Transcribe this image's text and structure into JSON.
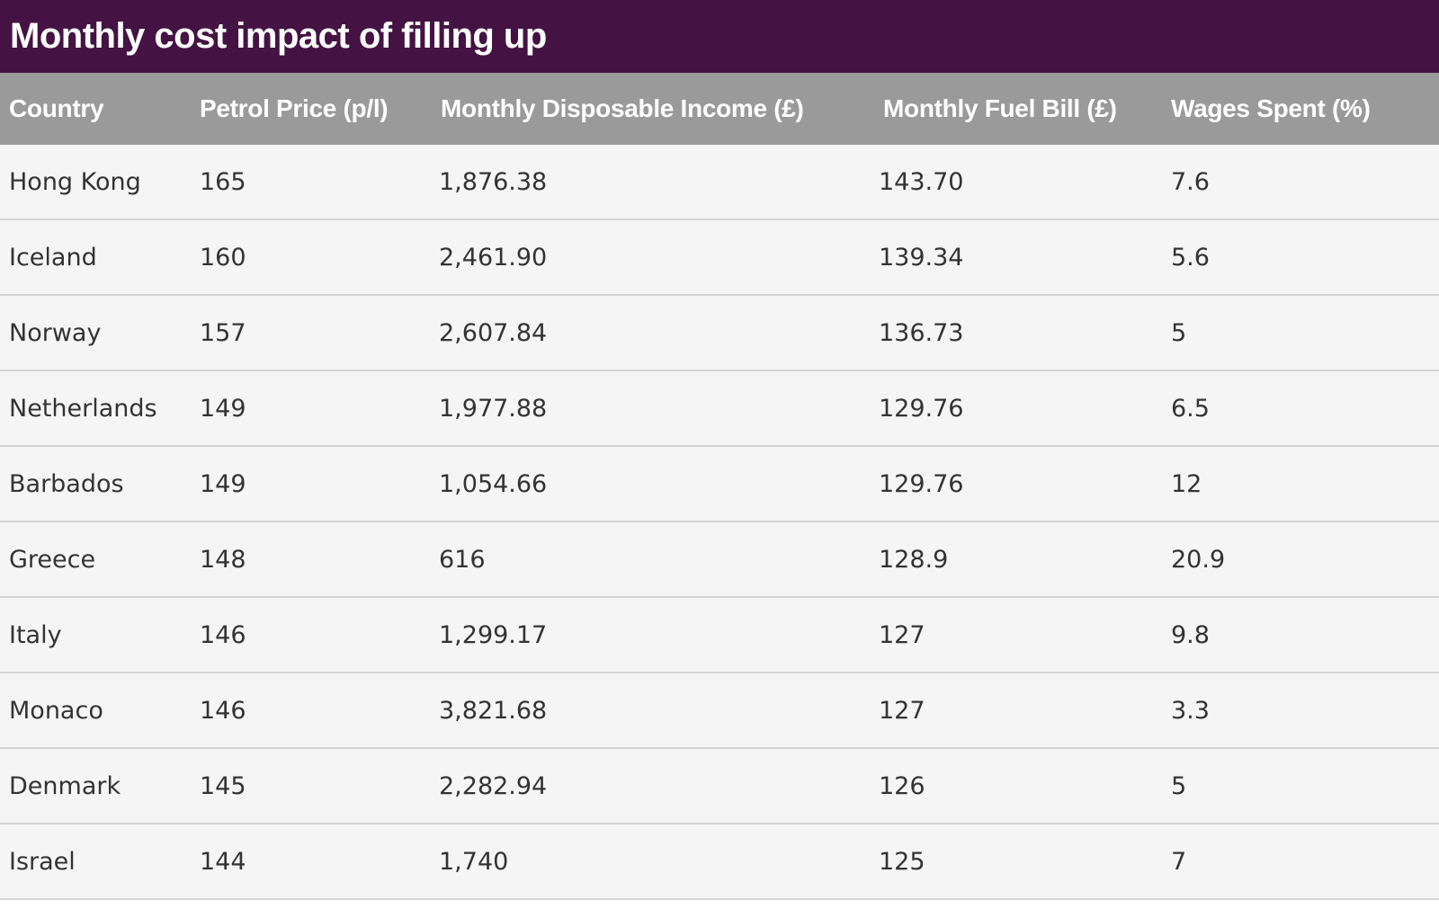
{
  "title": "Monthly cost impact of filling up",
  "table": {
    "headers": [
      "Country",
      "Petrol Price (p/l)",
      "Monthly Disposable Income (£)",
      "Monthly Fuel Bill (£)",
      "Wages Spent (%)"
    ],
    "rows": [
      [
        "Hong Kong",
        "165",
        "1,876.38",
        "143.70",
        "7.6"
      ],
      [
        "Iceland",
        "160",
        "2,461.90",
        "139.34",
        "5.6"
      ],
      [
        "Norway",
        "157",
        "2,607.84",
        "136.73",
        "5"
      ],
      [
        "Netherlands",
        "149",
        "1,977.88",
        "129.76",
        "6.5"
      ],
      [
        "Barbados",
        "149",
        "1,054.66",
        "129.76",
        "12"
      ],
      [
        "Greece",
        "148",
        "616",
        "128.9",
        "20.9"
      ],
      [
        "Italy",
        "146",
        "1,299.17",
        "127",
        "9.8"
      ],
      [
        "Monaco",
        "146",
        "3,821.68",
        "127",
        "3.3"
      ],
      [
        "Denmark",
        "145",
        "2,282.94",
        "126",
        "5"
      ],
      [
        "Israel",
        "144",
        "1,740",
        "125",
        "7"
      ]
    ]
  },
  "colors": {
    "title_bar": "#441343",
    "header_bg": "#9a9a9a",
    "row_bg": "#f5f5f5",
    "row_divider": "#d4d4d4",
    "header_text": "#ffffff",
    "cell_text": "#333333"
  }
}
